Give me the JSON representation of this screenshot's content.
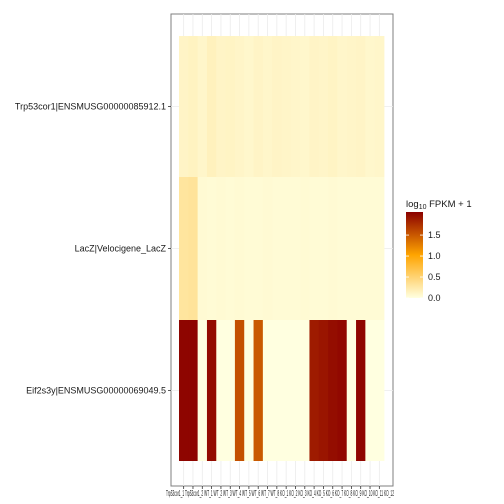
{
  "chart_data": {
    "type": "heatmap",
    "title": "",
    "xlabel": "",
    "ylabel": "",
    "rows": [
      "Trp53cor1|ENSMUSG00000085912.1",
      "LacZ|Velocigene_LacZ",
      "Eif2s3y|ENSMUSG00000069049.5"
    ],
    "columns": [
      "Trp53cor1_1",
      "Trp53cor1_2",
      "WT_1",
      "WT_2",
      "WT_3",
      "WT_4",
      "WT_5",
      "WT_6",
      "WT_7",
      "WT_8",
      "KO_1",
      "KO_2",
      "KO_3",
      "KO_4",
      "KO_5",
      "KO_6",
      "KO_7",
      "KO_8",
      "KO_9",
      "KO_10",
      "KO_11",
      "KO_12"
    ],
    "x_tick_text": "Trp53cor1_1 Trp53cor1_2 WT_1 WT_2 WT_3 WT_4 WT_5 WT_6 WT_7 WT_8 KO_1 KO_2 KO_3 KO_4 KO_5 KO_6 KO_7 KO_8 KO_9 KO_10 KO_11 KO_12",
    "values": [
      [
        0.12,
        0.14,
        0.1,
        0.16,
        0.12,
        0.13,
        0.11,
        0.09,
        0.12,
        0.1,
        0.12,
        0.11,
        0.1,
        0.09,
        0.12,
        0.11,
        0.13,
        0.1,
        0.11,
        0.12,
        0.09,
        0.1
      ],
      [
        0.3,
        0.32,
        0.06,
        0.05,
        0.06,
        0.05,
        0.06,
        0.05,
        0.05,
        0.06,
        0.05,
        0.05,
        0.05,
        0.06,
        0.05,
        0.05,
        0.06,
        0.05,
        0.05,
        0.05,
        0.05,
        0.05
      ],
      [
        2.02,
        2.02,
        0.0,
        1.98,
        0.0,
        0.0,
        1.55,
        0.0,
        1.5,
        0.0,
        0.0,
        0.0,
        0.0,
        0.0,
        1.88,
        1.92,
        1.97,
        2.0,
        0.0,
        2.01,
        0.0,
        0.0
      ]
    ],
    "legend": {
      "title_prefix": "log",
      "title_sub": "10",
      "title_suffix": " FPKM + 1",
      "placement": "right",
      "ticks": [
        0.0,
        0.5,
        1.0,
        1.5
      ],
      "tick_labels": [
        "0.0",
        "0.5",
        "1.0",
        "1.5"
      ],
      "range": [
        0,
        2.05
      ]
    },
    "colors": {
      "low": "#FFFFE0",
      "mid": "#FFA500",
      "high": "#8B0000",
      "panel_border": "#7f7f7f",
      "grid": "#ebebeb"
    },
    "grid": true
  }
}
